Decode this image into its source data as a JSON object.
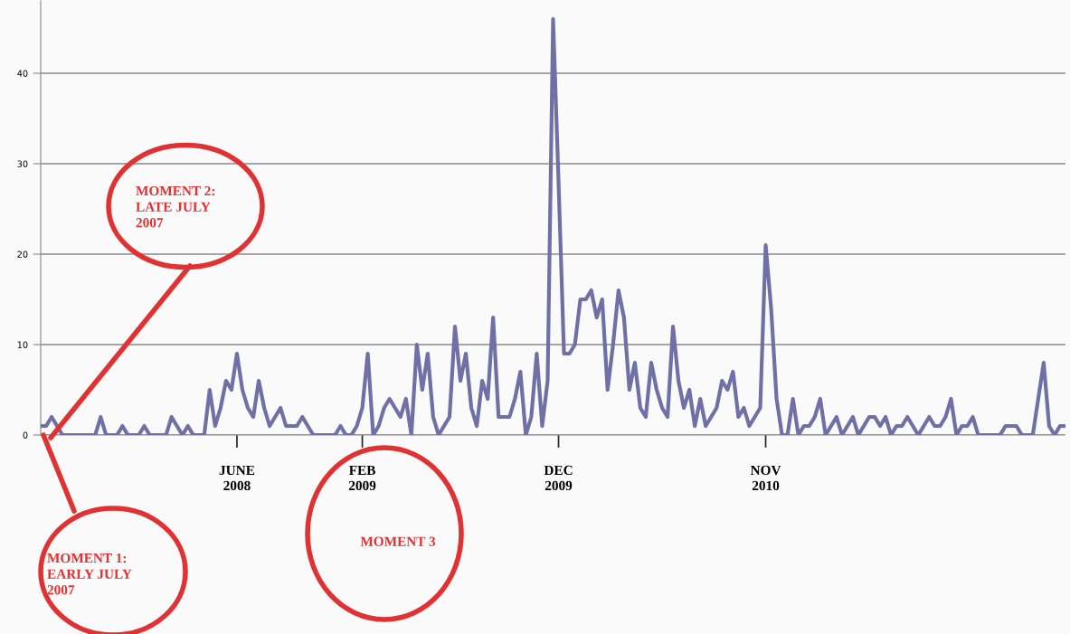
{
  "chart_data": {
    "type": "line",
    "categories": [
      null,
      null,
      null,
      null,
      null,
      null,
      null,
      null,
      null,
      null,
      null,
      null,
      null,
      null,
      null,
      null,
      null,
      null,
      null,
      null,
      null,
      null,
      null,
      null,
      null,
      null,
      null,
      null,
      null,
      null,
      null,
      null,
      null,
      null,
      null,
      null,
      "JUNE\n2008",
      null,
      null,
      null,
      null,
      null,
      null,
      null,
      null,
      null,
      null,
      null,
      null,
      null,
      null,
      null,
      null,
      null,
      null,
      null,
      null,
      null,
      null,
      "FEB\n2009",
      null,
      null,
      null,
      null,
      null,
      null,
      null,
      null,
      null,
      null,
      null,
      null,
      null,
      null,
      null,
      null,
      null,
      null,
      null,
      null,
      null,
      null,
      null,
      null,
      null,
      null,
      null,
      null,
      null,
      null,
      null,
      null,
      null,
      null,
      null,
      "DEC\n2009",
      null,
      null,
      null,
      null,
      null,
      null,
      null,
      null,
      null,
      null,
      null,
      null,
      null,
      null,
      null,
      null,
      null,
      null,
      null,
      null,
      null,
      null,
      null,
      null,
      null,
      null,
      null,
      null,
      null,
      null,
      null,
      null,
      null,
      null,
      null,
      null,
      null,
      "NOV\n2010",
      null,
      null,
      null,
      null,
      null,
      null,
      null,
      null,
      null,
      null,
      null,
      null,
      null,
      null,
      null,
      null,
      null,
      null,
      null,
      null,
      null,
      null,
      null,
      null,
      null,
      null,
      null,
      null,
      null,
      null,
      null,
      null,
      null,
      null,
      null,
      null,
      null,
      null,
      null,
      null,
      null,
      null,
      null,
      null,
      null,
      null,
      null,
      null,
      null,
      null,
      null,
      null,
      null,
      null,
      null
    ],
    "series": [
      {
        "color": "#6e70a6",
        "values": [
          1,
          1,
          2,
          1,
          0,
          0,
          0,
          0,
          0,
          0,
          0,
          2,
          0,
          0,
          0,
          1,
          0,
          0,
          0,
          1,
          0,
          0,
          0,
          0,
          2,
          1,
          0,
          1,
          0,
          0,
          0,
          5,
          1,
          3,
          6,
          5,
          9,
          5,
          3,
          2,
          6,
          3,
          1,
          2,
          3,
          1,
          1,
          1,
          2,
          1,
          0,
          0,
          0,
          0,
          0,
          1,
          0,
          0,
          1,
          3,
          9,
          0,
          1,
          3,
          4,
          3,
          2,
          4,
          0,
          10,
          5,
          9,
          2,
          0,
          1,
          2,
          12,
          6,
          9,
          3,
          1,
          6,
          4,
          13,
          2,
          2,
          2,
          4,
          7,
          0,
          2,
          9,
          1,
          6,
          46,
          28,
          9,
          9,
          10,
          15,
          15,
          16,
          13,
          15,
          5,
          10,
          16,
          13,
          5,
          8,
          3,
          2,
          8,
          5,
          3,
          2,
          12,
          6,
          3,
          5,
          1,
          4,
          1,
          2,
          3,
          6,
          5,
          7,
          2,
          3,
          1,
          2,
          3,
          21,
          14,
          4,
          0,
          0,
          4,
          0,
          1,
          1,
          2,
          4,
          0,
          1,
          2,
          0,
          1,
          2,
          0,
          1,
          2,
          2,
          1,
          2,
          0,
          1,
          1,
          2,
          1,
          0,
          1,
          2,
          1,
          1,
          2,
          4,
          0,
          1,
          1,
          2,
          0,
          0,
          0,
          0,
          0,
          1,
          1,
          1,
          0,
          0,
          0,
          4,
          8,
          1,
          0,
          1,
          1
        ]
      }
    ],
    "ylim": [
      0,
      48
    ],
    "yticks": [
      0,
      10,
      20,
      30,
      40
    ],
    "grid": "y",
    "legend": false,
    "marker": "none",
    "line_style": "solid",
    "annotations": [
      "MOMENT 1:\nEARLY JULY\n2007",
      "MOMENT 2:\nLATE JULY\n2007",
      "MOMENT 3"
    ]
  }
}
